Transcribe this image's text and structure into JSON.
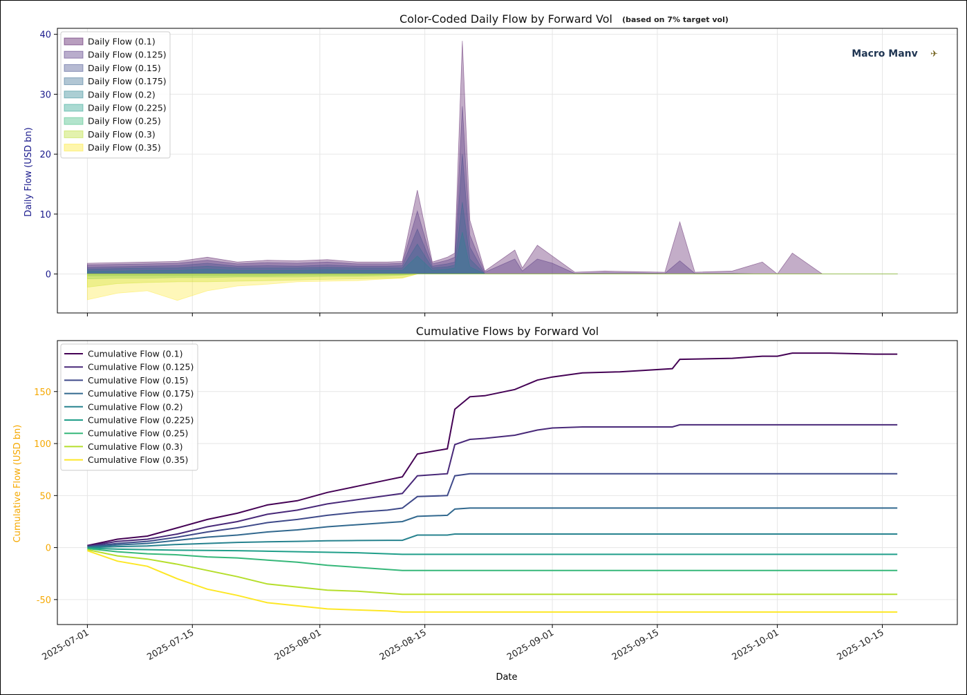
{
  "chart_data": [
    {
      "type": "area",
      "title": "Color-Coded Daily Flow by Forward Vol",
      "subtitle": "(based on 7% target vol)",
      "watermark": "Macro Manv",
      "ylabel": "Daily Flow (USD bn)",
      "ylabel_color": "#1a1a8c",
      "xlabel": "",
      "ylim": [
        -6.5,
        41
      ],
      "xlim": [
        "2025-06-27",
        "2025-10-25"
      ],
      "yticks": [
        0,
        10,
        20,
        30,
        40
      ],
      "grid": true,
      "legend_position": "top-left",
      "x": [
        "2025-07-01",
        "2025-07-05",
        "2025-07-09",
        "2025-07-13",
        "2025-07-17",
        "2025-07-21",
        "2025-07-25",
        "2025-07-29",
        "2025-08-02",
        "2025-08-06",
        "2025-08-10",
        "2025-08-12",
        "2025-08-14",
        "2025-08-16",
        "2025-08-18",
        "2025-08-19",
        "2025-08-20",
        "2025-08-21",
        "2025-08-23",
        "2025-08-27",
        "2025-08-28",
        "2025-08-30",
        "2025-09-01",
        "2025-09-04",
        "2025-09-08",
        "2025-09-12",
        "2025-09-16",
        "2025-09-18",
        "2025-09-20",
        "2025-09-25",
        "2025-09-29",
        "2025-10-01",
        "2025-10-03",
        "2025-10-07",
        "2025-10-11",
        "2025-10-15",
        "2025-10-17"
      ],
      "series": [
        {
          "name": "Daily Flow (0.1)",
          "color": "#440154",
          "values": [
            1.8,
            1.9,
            2.0,
            2.1,
            2.8,
            2.0,
            2.3,
            2.2,
            2.4,
            2.0,
            2.0,
            2.1,
            14.0,
            2.0,
            2.8,
            3.5,
            38.9,
            9.0,
            0.5,
            4.0,
            1.0,
            4.8,
            3.0,
            0.3,
            0.5,
            0.4,
            0.3,
            8.7,
            0.3,
            0.5,
            2.0,
            0,
            3.5,
            0,
            0,
            0,
            0
          ]
        },
        {
          "name": "Daily Flow (0.125)",
          "color": "#482878",
          "values": [
            1.5,
            1.6,
            1.7,
            1.8,
            2.3,
            1.7,
            1.9,
            1.8,
            2.0,
            1.7,
            1.7,
            1.8,
            10.5,
            1.7,
            2.3,
            2.8,
            28.0,
            6.5,
            0.3,
            2.5,
            0.5,
            2.5,
            1.8,
            0.1,
            0.2,
            0.2,
            0.1,
            2.2,
            0.1,
            0.1,
            0,
            0,
            0,
            0,
            0,
            0,
            0
          ]
        },
        {
          "name": "Daily Flow (0.15)",
          "color": "#3e4989",
          "values": [
            1.1,
            1.2,
            1.3,
            1.4,
            1.8,
            1.3,
            1.4,
            1.3,
            1.5,
            1.3,
            1.3,
            1.4,
            7.5,
            1.3,
            1.7,
            2.0,
            20.0,
            4.5,
            0,
            0,
            0,
            0,
            0,
            0,
            0,
            0,
            0,
            0,
            0,
            0,
            0,
            0,
            0,
            0,
            0,
            0,
            0
          ]
        },
        {
          "name": "Daily Flow (0.175)",
          "color": "#31688e",
          "values": [
            0.8,
            0.9,
            1.0,
            1.0,
            1.3,
            1.0,
            1.0,
            1.0,
            1.1,
            1.0,
            1.0,
            1.0,
            5.0,
            1.0,
            1.2,
            1.5,
            12.0,
            2.5,
            0,
            0,
            0,
            0,
            0,
            0,
            0,
            0,
            0,
            0,
            0,
            0,
            0,
            0,
            0,
            0,
            0,
            0,
            0
          ]
        },
        {
          "name": "Daily Flow (0.2)",
          "color": "#26828e",
          "values": [
            0.5,
            0.5,
            0.6,
            0.6,
            0.8,
            0.6,
            0.6,
            0.6,
            0.7,
            0.6,
            0.6,
            0.6,
            3.0,
            0.6,
            0.8,
            1.0,
            7.0,
            1.2,
            0,
            0,
            0,
            0,
            0,
            0,
            0,
            0,
            0,
            0,
            0,
            0,
            0,
            0,
            0,
            0,
            0,
            0,
            0
          ]
        },
        {
          "name": "Daily Flow (0.225)",
          "color": "#1f9e89",
          "values": [
            -0.3,
            -0.3,
            -0.3,
            -0.3,
            -0.3,
            -0.3,
            -0.3,
            -0.2,
            -0.2,
            -0.2,
            -0.1,
            -0.1,
            0,
            0,
            0,
            0,
            0,
            0,
            0,
            0,
            0,
            0,
            0,
            0,
            0,
            0,
            0,
            0,
            0,
            0,
            0,
            0,
            0,
            0,
            0,
            0,
            0
          ]
        },
        {
          "name": "Daily Flow (0.25)",
          "color": "#35b779",
          "values": [
            -0.8,
            -0.7,
            -0.7,
            -0.6,
            -0.6,
            -0.5,
            -0.5,
            -0.5,
            -0.4,
            -0.4,
            -0.3,
            -0.2,
            0,
            0,
            0,
            0,
            0,
            0,
            0,
            0,
            0,
            0,
            0,
            0,
            0,
            0,
            0,
            0,
            0,
            0,
            0,
            0,
            0,
            0,
            0,
            0,
            0
          ]
        },
        {
          "name": "Daily Flow (0.3)",
          "color": "#b5de2b",
          "values": [
            -2.2,
            -1.6,
            -1.4,
            -1.3,
            -1.3,
            -1.2,
            -1.1,
            -1.0,
            -0.9,
            -0.8,
            -0.7,
            -0.6,
            0,
            0,
            0,
            0,
            0,
            0,
            0,
            0,
            0,
            0,
            0,
            0,
            0,
            0,
            0,
            0,
            0,
            0,
            0,
            0,
            0,
            0,
            0,
            0,
            0
          ]
        },
        {
          "name": "Daily Flow (0.35)",
          "color": "#fde725",
          "values": [
            -4.3,
            -3.2,
            -2.8,
            -4.4,
            -2.8,
            -2.0,
            -1.7,
            -1.3,
            -1.2,
            -1.1,
            -0.8,
            -0.7,
            0,
            0,
            0,
            0,
            0,
            0,
            0,
            0,
            0,
            0,
            0,
            0,
            0,
            0,
            0,
            0,
            0,
            0,
            0,
            0,
            0,
            0,
            0,
            0,
            0
          ]
        }
      ]
    },
    {
      "type": "line",
      "title": "Cumulative Flows by Forward Vol",
      "xlabel": "Date",
      "ylabel": "Cumulative Flow (USD bn)",
      "ylabel_color": "#f5a800",
      "ylim": [
        -74,
        199
      ],
      "xlim": [
        "2025-06-27",
        "2025-10-25"
      ],
      "yticks": [
        -50,
        0,
        50,
        100,
        150
      ],
      "xticks": [
        "2025-07-01",
        "2025-07-15",
        "2025-08-01",
        "2025-08-15",
        "2025-09-01",
        "2025-09-15",
        "2025-10-01",
        "2025-10-15"
      ],
      "grid": true,
      "legend_position": "top-left",
      "x": [
        "2025-07-01",
        "2025-07-05",
        "2025-07-09",
        "2025-07-13",
        "2025-07-17",
        "2025-07-21",
        "2025-07-25",
        "2025-07-29",
        "2025-08-02",
        "2025-08-06",
        "2025-08-10",
        "2025-08-12",
        "2025-08-14",
        "2025-08-18",
        "2025-08-19",
        "2025-08-21",
        "2025-08-23",
        "2025-08-27",
        "2025-08-30",
        "2025-09-01",
        "2025-09-05",
        "2025-09-10",
        "2025-09-17",
        "2025-09-18",
        "2025-09-25",
        "2025-09-29",
        "2025-10-01",
        "2025-10-03",
        "2025-10-08",
        "2025-10-14",
        "2025-10-17"
      ],
      "series": [
        {
          "name": "Cumulative Flow (0.1)",
          "color": "#440154",
          "values": [
            2,
            8,
            11,
            19,
            27,
            33,
            41,
            45,
            53,
            59,
            65,
            68,
            90,
            95,
            133,
            145,
            146,
            152,
            161,
            164,
            168,
            169,
            172,
            181,
            182,
            184,
            184,
            187,
            187,
            186,
            186
          ]
        },
        {
          "name": "Cumulative Flow (0.125)",
          "color": "#482878",
          "values": [
            1.5,
            6,
            8,
            13,
            20,
            25,
            32,
            36,
            42,
            46,
            50,
            52,
            69,
            71,
            99,
            104,
            105,
            108,
            113,
            115,
            116,
            116,
            116,
            118,
            118,
            118,
            118,
            118,
            118,
            118,
            118
          ]
        },
        {
          "name": "Cumulative Flow (0.15)",
          "color": "#3e4989",
          "values": [
            1,
            4,
            6,
            10,
            15,
            19,
            24,
            27,
            31,
            34,
            36,
            38,
            49,
            50,
            69,
            71,
            71,
            71,
            71,
            71,
            71,
            71,
            71,
            71,
            71,
            71,
            71,
            71,
            71,
            71,
            71
          ]
        },
        {
          "name": "Cumulative Flow (0.175)",
          "color": "#31688e",
          "values": [
            0.5,
            2.5,
            4,
            7,
            10,
            12,
            15,
            17,
            20,
            22,
            24,
            25,
            30,
            31,
            37,
            38,
            38,
            38,
            38,
            38,
            38,
            38,
            38,
            38,
            38,
            38,
            38,
            38,
            38,
            38,
            38
          ]
        },
        {
          "name": "Cumulative Flow (0.2)",
          "color": "#26828e",
          "values": [
            0,
            1,
            1.5,
            3,
            4,
            5,
            5.5,
            6,
            6.5,
            6.8,
            7,
            7,
            12,
            12,
            13,
            13,
            13,
            13,
            13,
            13,
            13,
            13,
            13,
            13,
            13,
            13,
            13,
            13,
            13,
            13,
            13
          ]
        },
        {
          "name": "Cumulative Flow (0.225)",
          "color": "#1f9e89",
          "values": [
            -0.5,
            -1.5,
            -2,
            -2.5,
            -2.7,
            -3,
            -3.5,
            -4,
            -4.5,
            -5,
            -6,
            -6.5,
            -6.5,
            -6.5,
            -6.5,
            -6.5,
            -6.5,
            -6.5,
            -6.5,
            -6.5,
            -6.5,
            -6.5,
            -6.5,
            -6.5,
            -6.5,
            -6.5,
            -6.5,
            -6.5,
            -6.5,
            -6.5,
            -6.5
          ]
        },
        {
          "name": "Cumulative Flow (0.25)",
          "color": "#35b779",
          "values": [
            -1,
            -4,
            -6,
            -7,
            -9,
            -10,
            -12,
            -14,
            -17,
            -19,
            -21,
            -22,
            -22,
            -22,
            -22,
            -22,
            -22,
            -22,
            -22,
            -22,
            -22,
            -22,
            -22,
            -22,
            -22,
            -22,
            -22,
            -22,
            -22,
            -22,
            -22
          ]
        },
        {
          "name": "Cumulative Flow (0.3)",
          "color": "#b5de2b",
          "values": [
            -2,
            -8,
            -11,
            -16,
            -22,
            -28,
            -35,
            -38,
            -41,
            -42,
            -44,
            -45,
            -45,
            -45,
            -45,
            -45,
            -45,
            -45,
            -45,
            -45,
            -45,
            -45,
            -45,
            -45,
            -45,
            -45,
            -45,
            -45,
            -45,
            -45,
            -45
          ]
        },
        {
          "name": "Cumulative Flow (0.35)",
          "color": "#fde725",
          "values": [
            -3,
            -13,
            -18,
            -30,
            -40,
            -46,
            -53,
            -56,
            -59,
            -60,
            -61,
            -62,
            -62,
            -62,
            -62,
            -62,
            -62,
            -62,
            -62,
            -62,
            -62,
            -62,
            -62,
            -62,
            -62,
            -62,
            -62,
            -62,
            -62,
            -62,
            -62
          ]
        }
      ]
    }
  ]
}
